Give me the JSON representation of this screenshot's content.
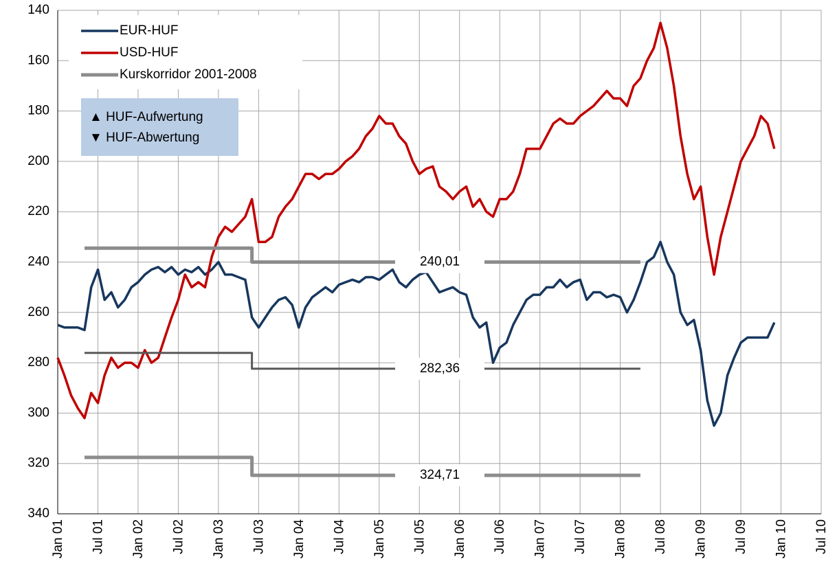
{
  "chart_data": {
    "type": "line",
    "x": [
      "2001-01",
      "2001-02",
      "2001-03",
      "2001-04",
      "2001-05",
      "2001-06",
      "2001-07",
      "2001-08",
      "2001-09",
      "2001-10",
      "2001-11",
      "2001-12",
      "2002-01",
      "2002-02",
      "2002-03",
      "2002-04",
      "2002-05",
      "2002-06",
      "2002-07",
      "2002-08",
      "2002-09",
      "2002-10",
      "2002-11",
      "2002-12",
      "2003-01",
      "2003-02",
      "2003-03",
      "2003-04",
      "2003-05",
      "2003-06",
      "2003-07",
      "2003-08",
      "2003-09",
      "2003-10",
      "2003-11",
      "2003-12",
      "2004-01",
      "2004-02",
      "2004-03",
      "2004-04",
      "2004-05",
      "2004-06",
      "2004-07",
      "2004-08",
      "2004-09",
      "2004-10",
      "2004-11",
      "2004-12",
      "2005-01",
      "2005-02",
      "2005-03",
      "2005-04",
      "2005-05",
      "2005-06",
      "2005-07",
      "2005-08",
      "2005-09",
      "2005-10",
      "2005-11",
      "2005-12",
      "2006-01",
      "2006-02",
      "2006-03",
      "2006-04",
      "2006-05",
      "2006-06",
      "2006-07",
      "2006-08",
      "2006-09",
      "2006-10",
      "2006-11",
      "2006-12",
      "2007-01",
      "2007-02",
      "2007-03",
      "2007-04",
      "2007-05",
      "2007-06",
      "2007-07",
      "2007-08",
      "2007-09",
      "2007-10",
      "2007-11",
      "2007-12",
      "2008-01",
      "2008-02",
      "2008-03",
      "2008-04",
      "2008-05",
      "2008-06",
      "2008-07",
      "2008-08",
      "2008-09",
      "2008-10",
      "2008-11",
      "2008-12",
      "2009-01",
      "2009-02",
      "2009-03",
      "2009-04",
      "2009-05",
      "2009-06",
      "2009-07",
      "2009-08",
      "2009-09",
      "2009-10",
      "2009-11",
      "2009-12"
    ],
    "series": [
      {
        "name": "EUR-HUF",
        "color": "#17375e",
        "width": 3.5,
        "values": [
          265,
          266,
          266,
          266,
          267,
          250,
          243,
          255,
          252,
          258,
          255,
          250,
          248,
          245,
          243,
          242,
          244,
          242,
          245,
          243,
          244,
          242,
          245,
          243,
          240,
          245,
          245,
          246,
          247,
          262,
          266,
          262,
          258,
          255,
          254,
          257,
          266,
          258,
          254,
          252,
          250,
          252,
          249,
          248,
          247,
          248,
          246,
          246,
          247,
          245,
          243,
          248,
          250,
          247,
          245,
          244,
          248,
          252,
          251,
          250,
          252,
          253,
          262,
          266,
          264,
          280,
          274,
          272,
          265,
          260,
          255,
          253,
          253,
          250,
          250,
          247,
          250,
          248,
          247,
          255,
          252,
          252,
          254,
          253,
          254,
          260,
          255,
          248,
          240,
          238,
          232,
          240,
          245,
          260,
          265,
          263,
          275,
          295,
          305,
          300,
          285,
          278,
          272,
          270,
          270,
          270,
          270,
          264
        ]
      },
      {
        "name": "USD-HUF",
        "color": "#c00000",
        "width": 3.5,
        "values": [
          278,
          285,
          293,
          298,
          302,
          292,
          296,
          285,
          278,
          282,
          280,
          280,
          282,
          275,
          280,
          278,
          270,
          262,
          255,
          245,
          250,
          248,
          250,
          238,
          230,
          226,
          228,
          225,
          222,
          215,
          232,
          232,
          230,
          222,
          218,
          215,
          210,
          205,
          205,
          207,
          205,
          205,
          203,
          200,
          198,
          195,
          190,
          187,
          182,
          185,
          185,
          190,
          193,
          200,
          205,
          203,
          202,
          210,
          212,
          215,
          212,
          210,
          218,
          215,
          220,
          222,
          215,
          215,
          212,
          205,
          195,
          195,
          195,
          190,
          185,
          183,
          185,
          185,
          182,
          180,
          178,
          175,
          172,
          175,
          175,
          178,
          170,
          167,
          160,
          155,
          145,
          155,
          170,
          190,
          205,
          215,
          210,
          230,
          245,
          230,
          220,
          210,
          200,
          195,
          190,
          182,
          185,
          195
        ]
      },
      {
        "name": "Kurskorridor 2001-2008",
        "color": "#8c8c8c",
        "width": 5,
        "x": [
          "2001-05",
          "2003-06",
          "2003-06",
          "2008-04"
        ],
        "values": [
          234.5,
          234.5,
          240.01,
          240.01
        ],
        "value_labels": [
          null,
          null,
          "240,01",
          null
        ]
      },
      {
        "color": "#595959",
        "width": 3,
        "x": [
          "2001-05",
          "2003-06",
          "2003-06",
          "2008-04"
        ],
        "values": [
          276.1,
          276.1,
          282.36,
          282.36
        ],
        "value_labels": [
          null,
          null,
          "282,36",
          null
        ]
      },
      {
        "color": "#8c8c8c",
        "width": 5,
        "x": [
          "2001-05",
          "2003-06",
          "2003-06",
          "2008-04"
        ],
        "values": [
          317.6,
          317.6,
          324.71,
          324.71
        ],
        "value_labels": [
          null,
          null,
          "324,71",
          null
        ]
      }
    ],
    "annotations": [
      "▲ HUF-Aufwertung",
      "▼ HUF-Abwertung"
    ],
    "ylim": [
      140,
      340
    ],
    "y_inverted": true,
    "yticks": [
      140,
      160,
      180,
      200,
      220,
      240,
      260,
      280,
      300,
      320,
      340
    ],
    "xlim": [
      "2001-01",
      "2010-07"
    ],
    "xticks": [
      {
        "value": "2001-01",
        "label": "Jan 01"
      },
      {
        "value": "2001-07",
        "label": "Jul 01"
      },
      {
        "value": "2002-01",
        "label": "Jan 02"
      },
      {
        "value": "2002-07",
        "label": "Jul 02"
      },
      {
        "value": "2003-01",
        "label": "Jan 03"
      },
      {
        "value": "2003-07",
        "label": "Jul 03"
      },
      {
        "value": "2004-01",
        "label": "Jan 04"
      },
      {
        "value": "2004-07",
        "label": "Jul 04"
      },
      {
        "value": "2005-01",
        "label": "Jan 05"
      },
      {
        "value": "2005-07",
        "label": "Jul 05"
      },
      {
        "value": "2006-01",
        "label": "Jan 06"
      },
      {
        "value": "2006-07",
        "label": "Jul 06"
      },
      {
        "value": "2007-01",
        "label": "Jan 07"
      },
      {
        "value": "2007-07",
        "label": "Jul 07"
      },
      {
        "value": "2008-01",
        "label": "Jan 08"
      },
      {
        "value": "2008-07",
        "label": "Jul 08"
      },
      {
        "value": "2009-01",
        "label": "Jan 09"
      },
      {
        "value": "2009-07",
        "label": "Jul 09"
      },
      {
        "value": "2010-01",
        "label": "Jan 10"
      },
      {
        "value": "2010-07",
        "label": "Jul 10"
      }
    ],
    "grid": true
  }
}
